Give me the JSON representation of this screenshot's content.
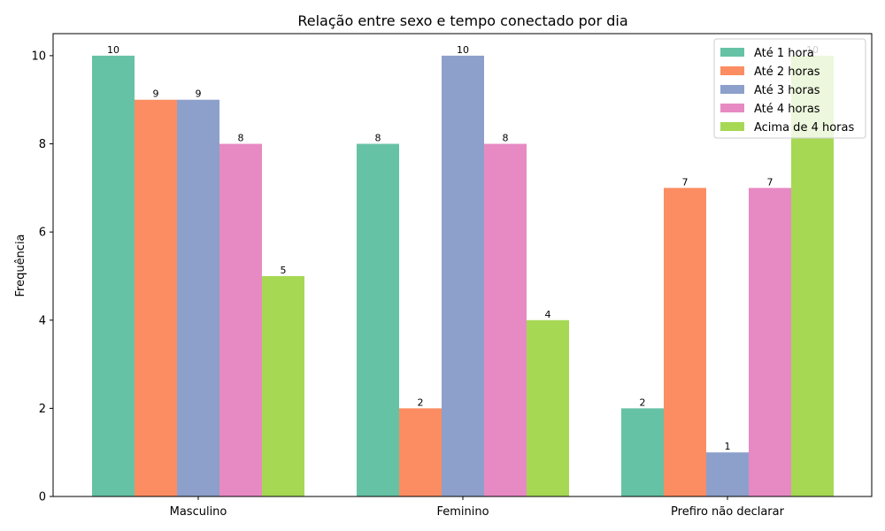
{
  "chart_data": {
    "type": "bar",
    "title": "Relação entre sexo e tempo conectado por dia",
    "xlabel": "",
    "ylabel": "Frequência",
    "categories": [
      "Masculino",
      "Feminino",
      "Prefiro não declarar"
    ],
    "ylim": [
      0,
      10.5
    ],
    "yticks": [
      0,
      2,
      4,
      6,
      8,
      10
    ],
    "grid": false,
    "legend_position": "top-right",
    "series": [
      {
        "name": "Até 1 hora",
        "color": "#66c2a5",
        "values": [
          10,
          8,
          2
        ]
      },
      {
        "name": "Até 2 horas",
        "color": "#fc8d62",
        "values": [
          9,
          2,
          7
        ]
      },
      {
        "name": "Até 3 horas",
        "color": "#8da0cb",
        "values": [
          9,
          10,
          1
        ]
      },
      {
        "name": "Até 4 horas",
        "color": "#e78ac3",
        "values": [
          8,
          8,
          7
        ]
      },
      {
        "name": "Acima de 4 horas",
        "color": "#a6d854",
        "values": [
          5,
          4,
          10
        ]
      }
    ]
  }
}
